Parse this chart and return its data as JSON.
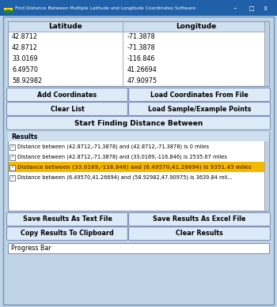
{
  "title": "Find Distance Between Multiple Latitude and Longitude Coordinates Software",
  "bg_color": "#c0d4e8",
  "window_bg": "#c0d4e8",
  "titlebar_bg": "#2060a8",
  "titlebar_text_color": "white",
  "table_headers": [
    "Latitude",
    "Longitude"
  ],
  "table_data": [
    [
      "42.8712",
      "-71.3878"
    ],
    [
      "42.8712",
      "-71.3878"
    ],
    [
      "33.0169",
      "-116.846"
    ],
    [
      "6.49570",
      "41.26694"
    ],
    [
      "58.92982",
      "47.90975"
    ]
  ],
  "buttons_row1": [
    "Add Coordinates",
    "Load Coordinates From File"
  ],
  "buttons_row2": [
    "Clear List",
    "Load Sample/Example Points"
  ],
  "button_main": "Start Finding Distance Between",
  "results_label": "Results",
  "result_items": [
    "Distance between (42.8712,-71.3878) and (42.8712,-71.3878) is 0 miles",
    "Distance between (42.8712,-71.3878) and (33.0169,-116.846) is 2535.67 miles",
    "Distance between (33.0169,-116.846) and (6.49570,41.26694) is 9351.45 miles",
    "Distance between (6.49570,41.26694) and (58.92982,47.90975) is 3639.84 mil..."
  ],
  "highlighted_row": 2,
  "highlight_color": "#f5b800",
  "highlight_text_color": "#7a4800",
  "buttons_row3": [
    "Save Results As Text File",
    "Save Results As Excel File"
  ],
  "buttons_row4": [
    "Copy Results To Clipboard",
    "Clear Results"
  ],
  "progress_label": "Progress Bar",
  "button_color": "#ddeaf8",
  "table_bg": "white",
  "results_bg": "white",
  "checkbox_color": "#2060a8",
  "font_size": 6.5,
  "small_font": 5.8
}
